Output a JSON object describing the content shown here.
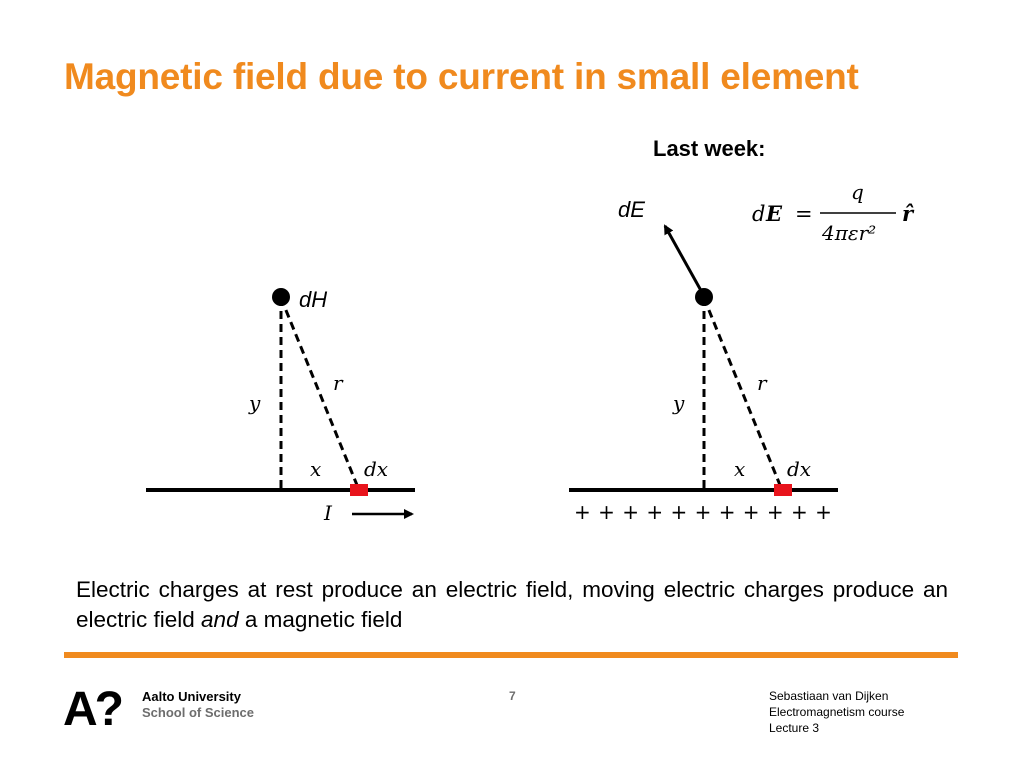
{
  "slide": {
    "title": "Magnetic field due to current in small element",
    "last_week_label": "Last week:"
  },
  "left_diagram": {
    "point_label": "dH",
    "y_label": "y",
    "r_label": "r",
    "x_label": "x",
    "dx_label": "dx",
    "current_label": "I"
  },
  "right_diagram": {
    "field_label": "dE",
    "y_label": "y",
    "r_label": "r",
    "x_label": "x",
    "dx_label": "dx",
    "charges": "+ + + + + + + + + + +",
    "formula_lhs_d": "d",
    "formula_lhs_E": "E",
    "formula_eq": "=",
    "formula_num": "q",
    "formula_den": "4πεr²",
    "formula_rhat": "r̂"
  },
  "body": {
    "text_before": "Electric charges at rest produce an electric field, moving electric charges produce an electric field ",
    "text_em": "and",
    "text_after": " a magnetic field"
  },
  "footer": {
    "logo_mark": "A?",
    "university": "Aalto University",
    "school": "School of Science",
    "page_number": "7",
    "author": "Sebastiaan van Dijken",
    "course": "Electromagnetism course",
    "lecture": "Lecture 3"
  },
  "colors": {
    "accent": "#f08a1e",
    "element_red": "#e8141c",
    "text": "#000000",
    "grey": "#6d6d6d"
  }
}
